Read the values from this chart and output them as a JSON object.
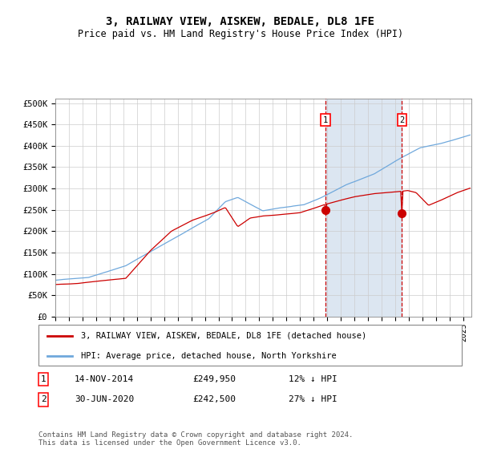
{
  "title": "3, RAILWAY VIEW, AISKEW, BEDALE, DL8 1FE",
  "subtitle": "Price paid vs. HM Land Registry's House Price Index (HPI)",
  "ylabel_vals": [
    0,
    50000,
    100000,
    150000,
    200000,
    250000,
    300000,
    350000,
    400000,
    450000,
    500000
  ],
  "ylabel_labels": [
    "£0",
    "£50K",
    "£100K",
    "£150K",
    "£200K",
    "£250K",
    "£300K",
    "£350K",
    "£400K",
    "£450K",
    "£500K"
  ],
  "x_start_year": 1995,
  "x_end_year": 2025,
  "hpi_color": "#6fa8dc",
  "price_color": "#cc0000",
  "shade_color": "#dce6f1",
  "plot_bg_color": "#ffffff",
  "marker_color": "#cc0000",
  "transaction1_date": "14-NOV-2014",
  "transaction1_price": 249950,
  "transaction1_year": 2014.872,
  "transaction2_date": "30-JUN-2020",
  "transaction2_price": 242500,
  "transaction2_year": 2020.495,
  "transaction1_pct": "12%",
  "transaction2_pct": "27%",
  "legend_label1": "3, RAILWAY VIEW, AISKEW, BEDALE, DL8 1FE (detached house)",
  "legend_label2": "HPI: Average price, detached house, North Yorkshire",
  "footer": "Contains HM Land Registry data © Crown copyright and database right 2024.\nThis data is licensed under the Open Government Licence v3.0."
}
